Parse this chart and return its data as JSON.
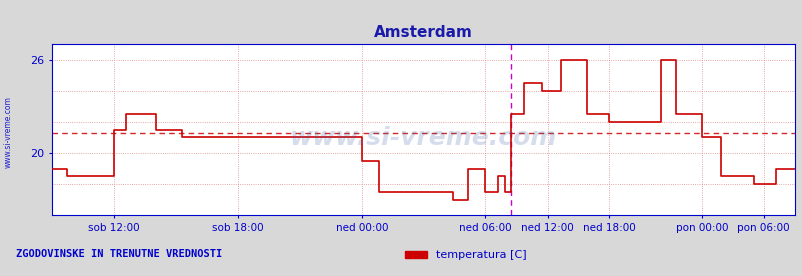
{
  "title": "Amsterdam",
  "title_color": "#1a1aaa",
  "bg_color": "#d8d8d8",
  "plot_bg_color": "#ffffff",
  "line_color": "#cc0000",
  "avg_line_color": "#cc0000",
  "vline_color": "#cc00cc",
  "grid_color": "#dd8888",
  "axis_color": "#0000cc",
  "text_color": "#0000cc",
  "ylabel_left_text": "www.si-vreme.com",
  "bottom_left_text": "ZGODOVINSKE IN TRENUTNE VREDNOSTI",
  "legend_label": "temperatura [C]",
  "legend_color": "#cc0000",
  "ylim": [
    16.0,
    27.0
  ],
  "yticks": [
    20,
    26
  ],
  "watermark_text": "www.si-vreme.com",
  "x_tick_labels": [
    "sob 12:00",
    "sob 18:00",
    "ned 00:00",
    "ned 06:00",
    "ned 12:00",
    "ned 18:00",
    "pon 00:00",
    "pon 06:00"
  ],
  "x_tick_positions": [
    0.083,
    0.25,
    0.417,
    0.583,
    0.667,
    0.75,
    0.875,
    0.958
  ],
  "avg_value": 21.3,
  "vline_pos": 0.618,
  "data_x": [
    0.0,
    0.02,
    0.02,
    0.083,
    0.083,
    0.1,
    0.1,
    0.14,
    0.14,
    0.175,
    0.175,
    0.23,
    0.23,
    0.25,
    0.25,
    0.417,
    0.417,
    0.44,
    0.44,
    0.54,
    0.54,
    0.56,
    0.56,
    0.583,
    0.583,
    0.6,
    0.6,
    0.61,
    0.61,
    0.618,
    0.618,
    0.635,
    0.635,
    0.66,
    0.66,
    0.685,
    0.685,
    0.72,
    0.72,
    0.75,
    0.75,
    0.82,
    0.82,
    0.84,
    0.84,
    0.875,
    0.875,
    0.9,
    0.9,
    0.945,
    0.945,
    0.975,
    0.975,
    1.0
  ],
  "data_y": [
    19.0,
    19.0,
    18.5,
    18.5,
    21.5,
    21.5,
    22.5,
    22.5,
    21.5,
    21.5,
    21.0,
    21.0,
    21.0,
    21.0,
    21.0,
    21.0,
    19.5,
    19.5,
    17.5,
    17.5,
    17.0,
    17.0,
    19.0,
    19.0,
    17.5,
    17.5,
    18.5,
    18.5,
    17.5,
    17.5,
    22.5,
    22.5,
    24.5,
    24.5,
    24.0,
    24.0,
    26.0,
    26.0,
    22.5,
    22.5,
    22.0,
    22.0,
    26.0,
    26.0,
    22.5,
    22.5,
    21.0,
    21.0,
    18.5,
    18.5,
    18.0,
    18.0,
    19.0,
    19.0
  ]
}
